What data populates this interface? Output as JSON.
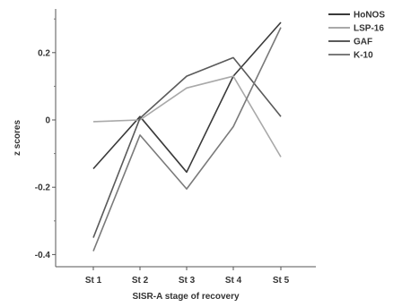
{
  "chart_data": {
    "type": "line",
    "xlabel": "SISR-A stage of recovery",
    "ylabel": "z scores",
    "categories": [
      "St 1",
      "St 2",
      "St 3",
      "St 4",
      "St 5"
    ],
    "ylim": [
      -0.42,
      0.34
    ],
    "yticks": [
      -0.4,
      -0.2,
      0,
      0.2
    ],
    "ytick_labels": [
      "-0.4",
      "-0.2",
      "0",
      "0.2"
    ],
    "grid": false,
    "legend_position": "top-right outside",
    "series": [
      {
        "name": "HoNOS",
        "color": "#3a3a3a",
        "values": [
          -0.145,
          0.01,
          -0.155,
          0.13,
          0.29
        ]
      },
      {
        "name": "LSP-16",
        "color": "#a9a9a9",
        "values": [
          -0.005,
          0.0,
          0.095,
          0.13,
          -0.11
        ]
      },
      {
        "name": "GAF",
        "color": "#5a5a5a",
        "values": [
          -0.35,
          0.005,
          0.13,
          0.185,
          0.01
        ]
      },
      {
        "name": "K-10",
        "color": "#7a7a7a",
        "values": [
          -0.39,
          -0.045,
          -0.205,
          -0.02,
          0.275
        ]
      }
    ]
  }
}
